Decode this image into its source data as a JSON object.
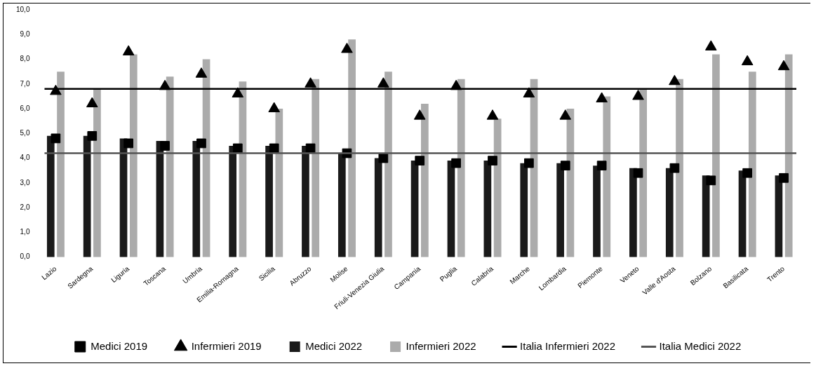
{
  "chart_data": {
    "type": "bar",
    "categories": [
      "Lazio",
      "Sardegna",
      "Liguria",
      "Toscana",
      "Umbria",
      "Emilia-Romagna",
      "Sicilia",
      "Abruzzo",
      "Molise",
      "Friuli-Venezia Giulia",
      "Campania",
      "Puglia",
      "Calabria",
      "Marche",
      "Lombardia",
      "Piemonte",
      "Veneto",
      "Valle d'Aosta",
      "Bolzano",
      "Basilicata",
      "Trento"
    ],
    "series": [
      {
        "name": "Medici 2022",
        "color": "#1a1a1a",
        "values": [
          4.9,
          4.9,
          4.8,
          4.7,
          4.7,
          4.5,
          4.5,
          4.5,
          4.2,
          4.0,
          3.9,
          3.9,
          3.9,
          3.8,
          3.8,
          3.7,
          3.6,
          3.6,
          3.3,
          3.5,
          3.3
        ]
      },
      {
        "name": "Infermieri 2022",
        "color": "#ababab",
        "values": [
          7.5,
          6.8,
          8.2,
          7.3,
          8.0,
          7.1,
          6.0,
          7.2,
          8.8,
          7.5,
          6.2,
          7.2,
          5.6,
          7.2,
          6.0,
          6.5,
          6.8,
          7.2,
          8.2,
          7.5,
          8.2
        ]
      },
      {
        "name": "Medici 2019",
        "type": "scatter",
        "marker": "square",
        "color": "#000000",
        "values": [
          4.8,
          4.9,
          4.6,
          4.5,
          4.6,
          4.4,
          4.4,
          4.4,
          4.2,
          4.0,
          3.9,
          3.8,
          3.9,
          3.8,
          3.7,
          3.7,
          3.4,
          3.6,
          3.1,
          3.4,
          3.2
        ]
      },
      {
        "name": "Infermieri 2019",
        "type": "scatter",
        "marker": "triangle",
        "color": "#000000",
        "values": [
          6.7,
          6.2,
          8.3,
          6.9,
          7.4,
          6.6,
          6.0,
          7.0,
          8.4,
          7.0,
          5.7,
          6.9,
          5.7,
          6.6,
          5.7,
          6.4,
          6.5,
          7.1,
          8.5,
          7.9,
          7.7
        ]
      }
    ],
    "ref_lines": [
      {
        "axis": "y",
        "value": 6.8,
        "label": "Italia Infermieri 2022",
        "color": "#000000"
      },
      {
        "axis": "y",
        "value": 4.2,
        "label": "Italia Medici 2022",
        "color": "#555555"
      }
    ],
    "ylim": [
      0,
      10
    ],
    "yticks": [
      {
        "value": 0,
        "label": "0,0"
      },
      {
        "value": 1,
        "label": "1,0"
      },
      {
        "value": 2,
        "label": "2,0"
      },
      {
        "value": 3,
        "label": "3,0"
      },
      {
        "value": 4,
        "label": "4,0"
      },
      {
        "value": 5,
        "label": "5,0"
      },
      {
        "value": 6,
        "label": "6,0"
      },
      {
        "value": 7,
        "label": "7,0"
      },
      {
        "value": 8,
        "label": "8,0"
      },
      {
        "value": 9,
        "label": "9,0"
      },
      {
        "value": 10,
        "label": "10,0"
      }
    ],
    "legend": "bottom"
  }
}
